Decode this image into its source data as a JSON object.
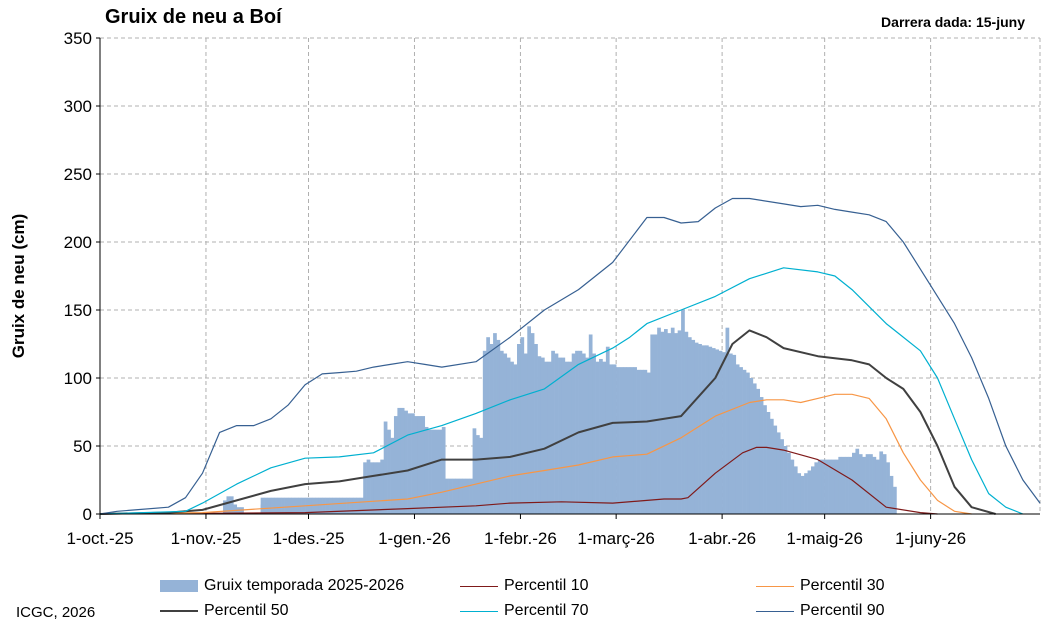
{
  "title": "Gruix de neu a Boí",
  "last_data": "Darrera dada:  15-juny",
  "credit": "ICGC,  2026",
  "chart_data": {
    "type": "bar",
    "ylabel": "Gruix de neu (cm)",
    "ylim": [
      0,
      350
    ],
    "yticks": [
      0,
      50,
      100,
      150,
      200,
      250,
      300,
      350
    ],
    "xticks": [
      "1-oct.-25",
      "1-nov.-25",
      "1-des.-25",
      "1-gen.-26",
      "1-febr.-26",
      "1-març-26",
      "1-abr.-26",
      "1-maig-26",
      "1-juny-26"
    ],
    "xtick_days": [
      0,
      31,
      61,
      92,
      123,
      151,
      182,
      212,
      243
    ],
    "x_range_days": [
      0,
      275
    ],
    "grid": true,
    "legend_position": "bottom",
    "bar_series": {
      "name": "Gruix temporada 2025-2026",
      "color": "#95b3d7",
      "segments": [
        {
          "start": 36,
          "end": 36,
          "values": [
            10
          ]
        },
        {
          "start": 37,
          "end": 38,
          "values": [
            13,
            13
          ]
        },
        {
          "start": 39,
          "end": 41,
          "values": [
            7,
            5,
            5
          ]
        },
        {
          "start": 47,
          "end": 47,
          "values": [
            7
          ]
        },
        {
          "start": 47,
          "end": 77,
          "values": [
            12,
            12,
            12,
            12,
            12,
            12,
            12,
            12,
            12,
            12,
            12,
            12,
            12,
            12,
            12,
            12,
            12,
            12,
            12,
            12,
            12,
            12,
            12,
            12,
            12,
            12,
            12,
            12,
            12,
            12,
            12
          ]
        },
        {
          "start": 77,
          "end": 82,
          "values": [
            38,
            40,
            38,
            38,
            38,
            40
          ]
        },
        {
          "start": 83,
          "end": 91,
          "values": [
            68,
            62,
            56,
            72,
            78,
            78,
            76,
            74,
            74
          ]
        },
        {
          "start": 92,
          "end": 100,
          "values": [
            72,
            72,
            72,
            64,
            62,
            62,
            62,
            62,
            64
          ]
        },
        {
          "start": 101,
          "end": 109,
          "values": [
            26,
            26,
            26,
            26,
            26,
            26,
            26,
            26,
            26
          ]
        },
        {
          "start": 109,
          "end": 112,
          "values": [
            63,
            58,
            56,
            55
          ]
        },
        {
          "start": 112,
          "end": 127,
          "values": [
            120,
            130,
            125,
            133,
            128,
            120,
            118,
            115,
            112,
            110,
            125,
            130,
            118,
            138,
            133,
            125
          ]
        },
        {
          "start": 128,
          "end": 160,
          "values": [
            116,
            115,
            112,
            112,
            120,
            118,
            115,
            115,
            112,
            112,
            118,
            120,
            120,
            118,
            115,
            132,
            118,
            112,
            114,
            112,
            123,
            110,
            110,
            108,
            108,
            108,
            108,
            108,
            108,
            106,
            106,
            106,
            104
          ]
        },
        {
          "start": 161,
          "end": 183,
          "values": [
            132,
            132,
            137,
            134,
            136,
            133,
            137,
            133,
            135,
            150,
            134,
            130,
            128,
            126,
            125,
            124,
            124,
            123,
            122,
            121,
            120,
            119,
            137
          ]
        },
        {
          "start": 184,
          "end": 215,
          "values": [
            118,
            117,
            110,
            108,
            106,
            104,
            100,
            96,
            92,
            86,
            80,
            75,
            70,
            65,
            60,
            55,
            50,
            45,
            40,
            35,
            30,
            28,
            30,
            32,
            35,
            38,
            40,
            40,
            40,
            40,
            40,
            40
          ]
        },
        {
          "start": 216,
          "end": 232,
          "values": [
            42,
            42,
            42,
            42,
            45,
            48,
            44,
            42,
            44,
            44,
            42,
            40,
            46,
            44,
            38,
            28,
            20
          ]
        }
      ]
    },
    "series": [
      {
        "name": "Percentil 10",
        "color": "#7f1a1a",
        "width": 1.2,
        "x": [
          0,
          60,
          90,
          110,
          120,
          135,
          150,
          160,
          165,
          170,
          172,
          180,
          188,
          192,
          195,
          200,
          210,
          220,
          230,
          240,
          245
        ],
        "y": [
          0,
          1,
          4,
          6,
          8,
          9,
          8,
          10,
          11,
          11,
          12,
          30,
          45,
          49,
          49,
          47,
          40,
          25,
          5,
          1,
          0
        ]
      },
      {
        "name": "Percentil 30",
        "color": "#f79646",
        "width": 1.2,
        "x": [
          0,
          30,
          60,
          90,
          100,
          110,
          120,
          130,
          140,
          150,
          160,
          170,
          180,
          190,
          195,
          200,
          205,
          210,
          215,
          220,
          225,
          230,
          235,
          240,
          245,
          250,
          255
        ],
        "y": [
          0,
          1,
          6,
          11,
          16,
          22,
          28,
          32,
          36,
          42,
          44,
          56,
          72,
          82,
          84,
          84,
          82,
          85,
          88,
          88,
          85,
          70,
          45,
          25,
          10,
          2,
          0
        ]
      },
      {
        "name": "Percentil 50",
        "color": "#404040",
        "width": 2,
        "x": [
          0,
          20,
          30,
          40,
          50,
          60,
          70,
          80,
          90,
          100,
          110,
          120,
          130,
          140,
          150,
          160,
          170,
          180,
          185,
          190,
          195,
          200,
          210,
          220,
          225,
          230,
          235,
          240,
          245,
          250,
          255,
          262
        ],
        "y": [
          0,
          1,
          3,
          10,
          17,
          22,
          24,
          28,
          32,
          40,
          40,
          42,
          48,
          60,
          67,
          68,
          72,
          100,
          125,
          135,
          130,
          122,
          116,
          113,
          110,
          100,
          92,
          75,
          50,
          20,
          5,
          0
        ]
      },
      {
        "name": "Percentil 70",
        "color": "#00b0d0",
        "width": 1.2,
        "x": [
          0,
          25,
          30,
          40,
          50,
          60,
          70,
          80,
          90,
          100,
          110,
          120,
          130,
          140,
          150,
          155,
          160,
          170,
          180,
          190,
          200,
          210,
          215,
          220,
          230,
          240,
          245,
          250,
          255,
          260,
          265,
          270
        ],
        "y": [
          0,
          2,
          8,
          22,
          34,
          41,
          42,
          45,
          58,
          65,
          74,
          84,
          92,
          110,
          122,
          130,
          140,
          150,
          160,
          173,
          181,
          178,
          175,
          165,
          140,
          120,
          100,
          70,
          40,
          15,
          5,
          0
        ]
      },
      {
        "name": "Percentil 90",
        "color": "#376092",
        "width": 1.2,
        "x": [
          0,
          5,
          20,
          25,
          30,
          35,
          40,
          45,
          50,
          55,
          60,
          65,
          70,
          75,
          80,
          85,
          90,
          95,
          100,
          110,
          120,
          130,
          140,
          150,
          160,
          165,
          170,
          175,
          180,
          185,
          190,
          200,
          205,
          210,
          215,
          220,
          225,
          230,
          235,
          240,
          245,
          250,
          255,
          260,
          265,
          270,
          275
        ],
        "y": [
          0,
          2,
          5,
          12,
          30,
          60,
          65,
          65,
          70,
          80,
          95,
          103,
          104,
          105,
          108,
          110,
          112,
          110,
          108,
          112,
          130,
          150,
          165,
          185,
          218,
          218,
          214,
          215,
          225,
          232,
          232,
          228,
          226,
          227,
          224,
          222,
          220,
          215,
          200,
          180,
          160,
          140,
          115,
          85,
          50,
          25,
          8
        ]
      }
    ]
  },
  "legend": {
    "items": [
      {
        "label": "Gruix temporada 2025-2026",
        "kind": "bar",
        "color": "#95b3d7"
      },
      {
        "label": "Percentil 10",
        "kind": "line",
        "color": "#7f1a1a",
        "width": 1
      },
      {
        "label": "Percentil 30",
        "kind": "line",
        "color": "#f79646",
        "width": 1
      },
      {
        "label": "Percentil 50",
        "kind": "line",
        "color": "#404040",
        "width": 2
      },
      {
        "label": "Percentil 70",
        "kind": "line",
        "color": "#00b0d0",
        "width": 1
      },
      {
        "label": "Percentil 90",
        "kind": "line",
        "color": "#376092",
        "width": 1
      }
    ]
  }
}
